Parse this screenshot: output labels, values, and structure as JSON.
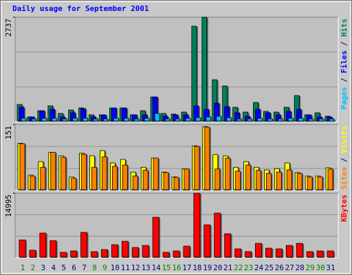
{
  "chart_data": [
    {
      "type": "bar",
      "title": "Daily usage for September 2001",
      "ylim": [
        0,
        2737
      ],
      "yticks": [
        2737
      ],
      "series": [
        {
          "name": "Hits",
          "color": "#00805c",
          "values": [
            450,
            126,
            288,
            414,
            216,
            306,
            360,
            180,
            180,
            360,
            360,
            180,
            288,
            648,
            216,
            198,
            252,
            2502,
            2737,
            1098,
            936,
            378,
            252,
            504,
            270,
            252,
            378,
            684,
            180,
            234,
            144
          ]
        },
        {
          "name": "Files",
          "color": "#0000ff",
          "values": [
            378,
            126,
            288,
            324,
            126,
            234,
            342,
            126,
            180,
            360,
            360,
            180,
            180,
            648,
            144,
            180,
            180,
            414,
            324,
            486,
            396,
            234,
            144,
            324,
            234,
            180,
            270,
            324,
            180,
            126,
            126
          ]
        },
        {
          "name": "Pages",
          "color": "#00c0ff",
          "values": [
            90,
            72,
            90,
            90,
            72,
            90,
            90,
            72,
            72,
            90,
            90,
            72,
            90,
            216,
            72,
            72,
            90,
            108,
            126,
            144,
            108,
            72,
            72,
            90,
            72,
            72,
            90,
            90,
            72,
            72,
            72
          ]
        }
      ]
    },
    {
      "type": "bar",
      "ylim": [
        0,
        151
      ],
      "yticks": [
        151
      ],
      "series": [
        {
          "name": "Visits",
          "color": "#ffff00",
          "values": [
            108,
            35,
            66,
            87,
            79,
            31,
            85,
            79,
            91,
            63,
            71,
            42,
            53,
            74,
            42,
            31,
            49,
            102,
            146,
            82,
            79,
            53,
            66,
            53,
            47,
            50,
            63,
            41,
            33,
            33,
            52
          ]
        },
        {
          "name": "Sites",
          "color": "#ff8000",
          "values": [
            107,
            33,
            53,
            87,
            76,
            28,
            83,
            53,
            77,
            55,
            58,
            33,
            46,
            74,
            41,
            30,
            49,
            101,
            145,
            49,
            74,
            44,
            58,
            46,
            39,
            42,
            47,
            39,
            31,
            31,
            49
          ]
        }
      ]
    },
    {
      "type": "bar",
      "ylim": [
        0,
        14995
      ],
      "yticks": [
        14995
      ],
      "categories": [
        "1",
        "2",
        "3",
        "4",
        "5",
        "6",
        "7",
        "8",
        "9",
        "10",
        "11",
        "12",
        "13",
        "14",
        "15",
        "16",
        "17",
        "18",
        "19",
        "20",
        "21",
        "22",
        "23",
        "24",
        "25",
        "26",
        "27",
        "28",
        "29",
        "30",
        "31"
      ],
      "category_colors": [
        "#008000",
        "#008000",
        "#000080",
        "#000080",
        "#000080",
        "#000080",
        "#000080",
        "#008000",
        "#008000",
        "#000080",
        "#000080",
        "#000080",
        "#000080",
        "#000080",
        "#008000",
        "#008000",
        "#000080",
        "#000080",
        "#000080",
        "#000080",
        "#000080",
        "#008000",
        "#008000",
        "#000080",
        "#000080",
        "#000080",
        "#000080",
        "#000080",
        "#008000",
        "#008000",
        "#000080"
      ],
      "series": [
        {
          "name": "KBytes",
          "color": "#ff0000",
          "values": [
            4147,
            1755,
            5742,
            3988,
            1276,
            1595,
            5902,
            1436,
            1914,
            3031,
            3828,
            2393,
            2871,
            9411,
            1276,
            1595,
            2712,
            14995,
            7656,
            10368,
            5583,
            2074,
            1436,
            3350,
            2233,
            2074,
            2871,
            3350,
            1436,
            1595,
            1595
          ]
        }
      ]
    }
  ]
}
